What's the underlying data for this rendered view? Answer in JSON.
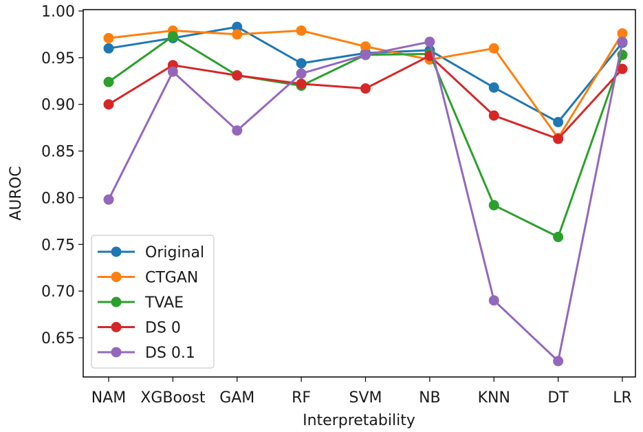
{
  "chart_data": {
    "type": "line",
    "title": "",
    "xlabel": "Interpretability",
    "ylabel": "AUROC",
    "categories": [
      "NAM",
      "XGBoost",
      "GAM",
      "RF",
      "SVM",
      "NB",
      "KNN",
      "DT",
      "LR"
    ],
    "ylim": [
      0.6,
      1.0
    ],
    "yticks": [
      0.65,
      0.7,
      0.75,
      0.8,
      0.85,
      0.9,
      0.95,
      1.0
    ],
    "ytick_labels": [
      "0.65",
      "0.70",
      "0.75",
      "0.80",
      "0.85",
      "0.90",
      "0.95",
      "1.00"
    ],
    "grid": false,
    "legend_position": "lower-left",
    "series": [
      {
        "name": "Original",
        "color": "#1f77b4",
        "values": [
          0.96,
          0.971,
          0.983,
          0.944,
          0.955,
          0.958,
          0.918,
          0.881,
          0.966
        ]
      },
      {
        "name": "CTGAN",
        "color": "#ff7f0e",
        "values": [
          0.971,
          0.979,
          0.975,
          0.979,
          0.962,
          0.948,
          0.96,
          0.864,
          0.976
        ]
      },
      {
        "name": "TVAE",
        "color": "#2ca02c",
        "values": [
          0.924,
          0.973,
          0.931,
          0.92,
          0.953,
          0.954,
          0.792,
          0.758,
          0.953
        ]
      },
      {
        "name": "DS 0",
        "color": "#d62728",
        "values": [
          0.9,
          0.942,
          0.931,
          0.922,
          0.917,
          0.952,
          0.888,
          0.863,
          0.938
        ]
      },
      {
        "name": "DS 0.1",
        "color": "#9467bd",
        "values": [
          0.798,
          0.935,
          0.872,
          0.933,
          0.953,
          0.967,
          0.69,
          0.625,
          0.967
        ]
      }
    ]
  }
}
